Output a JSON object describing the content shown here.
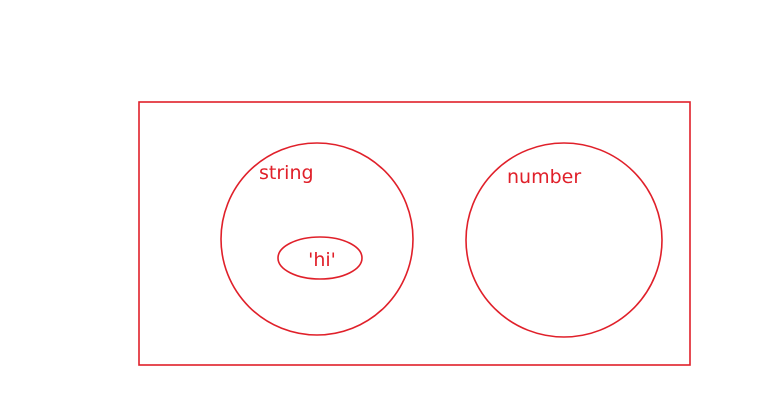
{
  "diagram": {
    "stroke_color": "#e0202a",
    "text_color": "#e0202a",
    "sets": [
      {
        "label": "string",
        "members": [
          "'hi'"
        ]
      },
      {
        "label": "number",
        "members": []
      }
    ]
  }
}
